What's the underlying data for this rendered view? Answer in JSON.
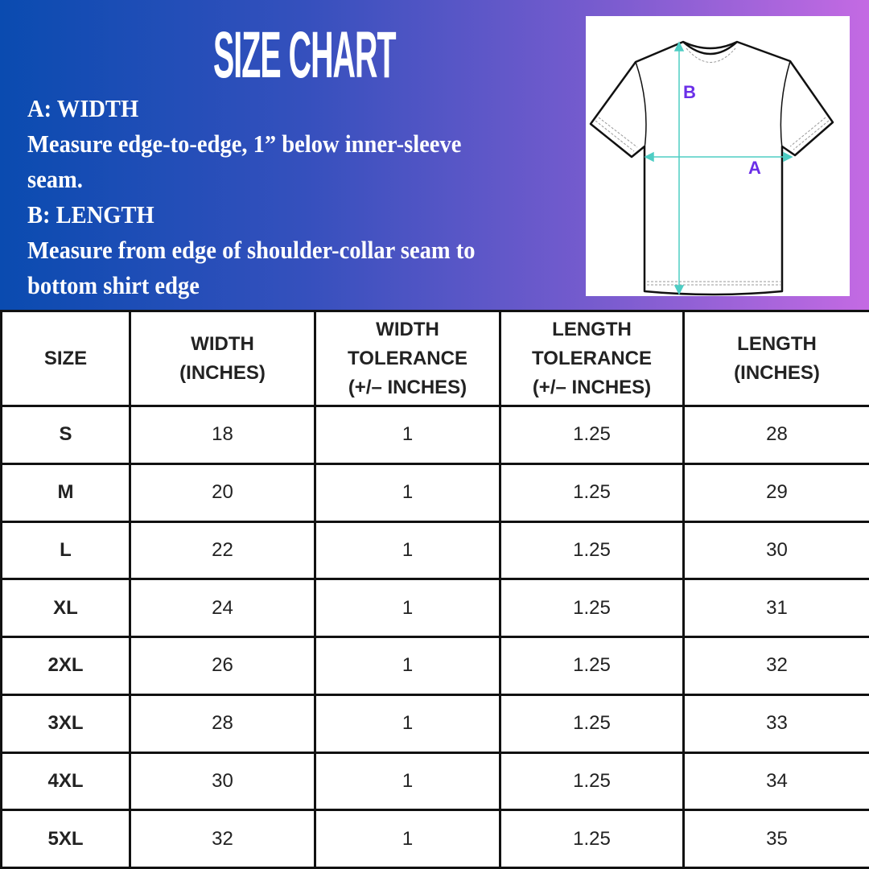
{
  "title": "SIZE CHART",
  "description": {
    "a_label": "A: WIDTH",
    "a_text_1": "Measure edge-to-edge, 1” below inner-sleeve",
    "a_text_2": "seam.",
    "b_label": "B: LENGTH",
    "b_text_1": "Measure from edge of shoulder-collar seam to",
    "b_text_2": "bottom shirt edge"
  },
  "diagram": {
    "label_a": "A",
    "label_b": "B",
    "arrow_color": "#4ecdc4",
    "label_color": "#6a2ee8",
    "icon": "t-shirt-outline"
  },
  "table": {
    "headers": [
      [
        "SIZE"
      ],
      [
        "WIDTH",
        "(INCHES)"
      ],
      [
        "WIDTH",
        "TOLERANCE",
        "(+/– INCHES)"
      ],
      [
        "LENGTH",
        "TOLERANCE",
        "(+/– INCHES)"
      ],
      [
        "LENGTH",
        "(INCHES)"
      ]
    ],
    "rows": [
      [
        "S",
        "18",
        "1",
        "1.25",
        "28"
      ],
      [
        "M",
        "20",
        "1",
        "1.25",
        "29"
      ],
      [
        "L",
        "22",
        "1",
        "1.25",
        "30"
      ],
      [
        "XL",
        "24",
        "1",
        "1.25",
        "31"
      ],
      [
        "2XL",
        "26",
        "1",
        "1.25",
        "32"
      ],
      [
        "3XL",
        "28",
        "1",
        "1.25",
        "33"
      ],
      [
        "4XL",
        "30",
        "1",
        "1.25",
        "34"
      ],
      [
        "5XL",
        "32",
        "1",
        "1.25",
        "35"
      ]
    ]
  }
}
